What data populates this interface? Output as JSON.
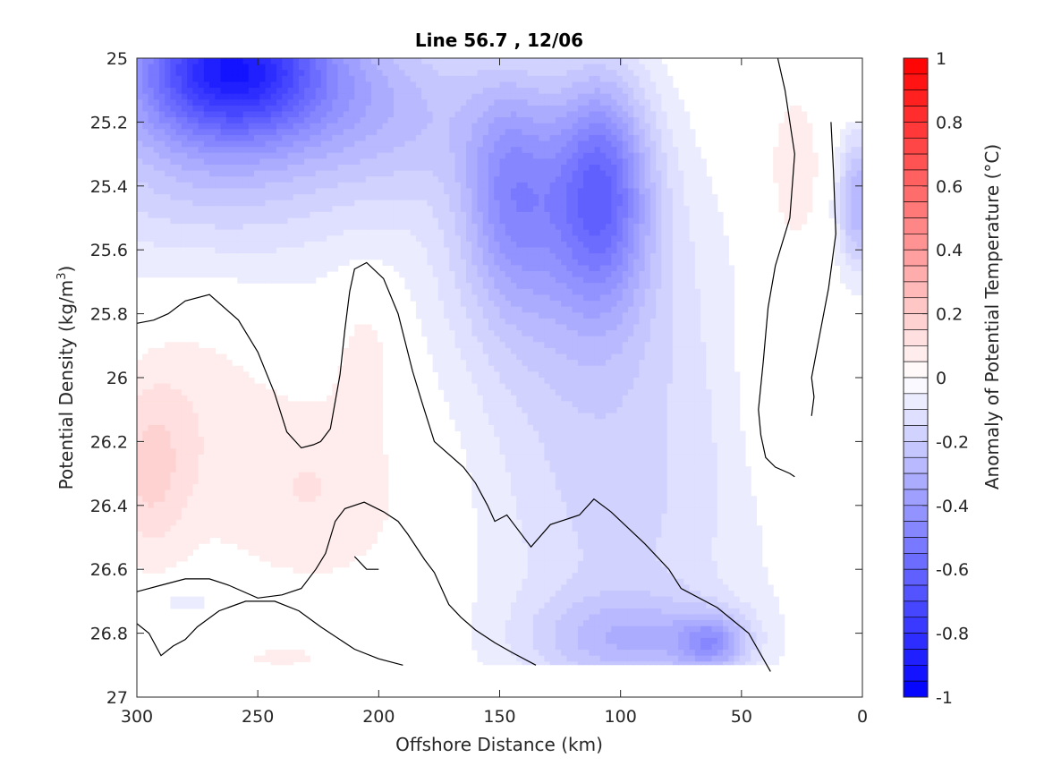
{
  "chart_data": {
    "type": "contour",
    "title": "Line 56.7 , 12/06",
    "xlabel": "Offshore Distance (km)",
    "ylabel_main": "Potential Density (kg/m",
    "ylabel_sup": "3",
    "ylabel_close": ")",
    "x_range": [
      300,
      0
    ],
    "x_reversed": true,
    "y_range": [
      25,
      27
    ],
    "y_reversed": true,
    "x_ticks": [
      300,
      250,
      200,
      150,
      100,
      50,
      0
    ],
    "x_tick_labels": [
      "300",
      "250",
      "200",
      "150",
      "100",
      "50",
      "0"
    ],
    "y_ticks": [
      25,
      25.2,
      25.4,
      25.6,
      25.8,
      26,
      26.2,
      26.4,
      26.6,
      26.8,
      27
    ],
    "y_tick_labels": [
      "25",
      "25.2",
      "25.4",
      "25.6",
      "25.8",
      "26",
      "26.2",
      "26.4",
      "26.6",
      "26.8",
      "27"
    ],
    "colorbar": {
      "label": "Anomaly of Potential Temperature (°C)",
      "range": [
        -1,
        1
      ],
      "ticks": [
        1,
        0.8,
        0.6,
        0.4,
        0.2,
        0,
        -0.2,
        -0.4,
        -0.6,
        -0.8,
        -1
      ],
      "tick_labels": [
        "1",
        "0.8",
        "0.6",
        "0.4",
        "0.2",
        "0",
        "-0.2",
        "-0.4",
        "-0.6",
        "-0.8",
        "-1"
      ],
      "n_levels": 40,
      "color_neg": "#0000ff",
      "color_zero": "#ffffff",
      "color_pos": "#ff0000"
    },
    "data_extent": {
      "x_max": 300,
      "x_min": 35,
      "y_max": 26.9
    },
    "blank_corner": {
      "x_max": 14,
      "y_max": 25.2
    },
    "field_features": [
      {
        "x": 260,
        "y": 25.02,
        "value": -0.72,
        "sx": 28,
        "sy": 0.16
      },
      {
        "x": 270,
        "y": 25.25,
        "value": -0.25,
        "sx": 45,
        "sy": 0.3
      },
      {
        "x": 195,
        "y": 25.15,
        "value": -0.2,
        "sx": 30,
        "sy": 0.2
      },
      {
        "x": 145,
        "y": 25.4,
        "value": -0.3,
        "sx": 14,
        "sy": 0.25
      },
      {
        "x": 108,
        "y": 25.4,
        "value": -0.45,
        "sx": 14,
        "sy": 0.25
      },
      {
        "x": 125,
        "y": 25.6,
        "value": -0.2,
        "sx": 35,
        "sy": 0.35
      },
      {
        "x": 100,
        "y": 26.4,
        "value": -0.16,
        "sx": 40,
        "sy": 0.5
      },
      {
        "x": 95,
        "y": 26.82,
        "value": -0.2,
        "sx": 30,
        "sy": 0.1
      },
      {
        "x": 62,
        "y": 26.83,
        "value": -0.28,
        "sx": 10,
        "sy": 0.06
      },
      {
        "x": 2,
        "y": 25.45,
        "value": -0.3,
        "sx": 6,
        "sy": 0.15
      },
      {
        "x": 28,
        "y": 25.35,
        "value": 0.1,
        "sx": 8,
        "sy": 0.18
      },
      {
        "x": 38,
        "y": 26.0,
        "value": 0.08,
        "sx": 8,
        "sy": 0.22
      },
      {
        "x": 205,
        "y": 25.9,
        "value": 0.08,
        "sx": 10,
        "sy": 0.15
      },
      {
        "x": 295,
        "y": 26.3,
        "value": 0.14,
        "sx": 12,
        "sy": 0.2
      },
      {
        "x": 275,
        "y": 26.0,
        "value": 0.07,
        "sx": 22,
        "sy": 0.3
      },
      {
        "x": 240,
        "y": 26.88,
        "value": 0.05,
        "sx": 25,
        "sy": 0.05
      },
      {
        "x": 225,
        "y": 26.35,
        "value": 0.1,
        "sx": 30,
        "sy": 0.22
      },
      {
        "x": 280,
        "y": 26.7,
        "value": -0.08,
        "sx": 12,
        "sy": 0.04
      }
    ],
    "zero_contours": [
      [
        [
          300,
          25.83
        ],
        [
          293,
          25.82
        ],
        [
          287,
          25.8
        ],
        [
          280,
          25.76
        ],
        [
          270,
          25.74
        ],
        [
          258,
          25.82
        ],
        [
          250,
          25.92
        ],
        [
          243,
          26.05
        ],
        [
          238,
          26.17
        ],
        [
          232,
          26.22
        ],
        [
          227,
          26.21
        ],
        [
          224,
          26.2
        ],
        [
          220,
          26.16
        ],
        [
          216,
          25.99
        ],
        [
          214,
          25.85
        ],
        [
          212,
          25.73
        ],
        [
          210,
          25.66
        ],
        [
          205,
          25.64
        ],
        [
          198,
          25.69
        ],
        [
          192,
          25.8
        ],
        [
          186,
          25.98
        ],
        [
          182,
          26.08
        ],
        [
          177,
          26.2
        ],
        [
          165,
          26.28
        ],
        [
          160,
          26.33
        ],
        [
          155,
          26.4
        ],
        [
          152,
          26.45
        ],
        [
          147,
          26.43
        ],
        [
          143,
          26.47
        ],
        [
          137,
          26.53
        ],
        [
          129,
          26.46
        ],
        [
          117,
          26.43
        ],
        [
          111,
          26.38
        ],
        [
          104,
          26.42
        ],
        [
          90,
          26.52
        ],
        [
          80,
          26.6
        ],
        [
          75,
          26.66
        ],
        [
          60,
          26.72
        ],
        [
          47,
          26.8
        ],
        [
          38,
          26.92
        ]
      ],
      [
        [
          210,
          26.56
        ],
        [
          205,
          26.6
        ],
        [
          200,
          26.6
        ]
      ],
      [
        [
          300,
          26.67
        ],
        [
          290,
          26.65
        ],
        [
          280,
          26.63
        ],
        [
          270,
          26.63
        ],
        [
          262,
          26.65
        ],
        [
          250,
          26.69
        ],
        [
          240,
          26.68
        ],
        [
          232,
          26.66
        ],
        [
          226,
          26.6
        ],
        [
          222,
          26.55
        ],
        [
          218,
          26.45
        ],
        [
          214,
          26.41
        ],
        [
          206,
          26.39
        ],
        [
          198,
          26.42
        ],
        [
          192,
          26.45
        ],
        [
          188,
          26.49
        ],
        [
          181,
          26.57
        ],
        [
          177,
          26.61
        ],
        [
          171,
          26.71
        ],
        [
          166,
          26.75
        ],
        [
          160,
          26.79
        ],
        [
          152,
          26.83
        ],
        [
          145,
          26.86
        ],
        [
          135,
          26.9
        ]
      ],
      [
        [
          300,
          26.77
        ],
        [
          295,
          26.8
        ],
        [
          290,
          26.87
        ],
        [
          285,
          26.84
        ],
        [
          280,
          26.82
        ],
        [
          275,
          26.78
        ],
        [
          266,
          26.73
        ],
        [
          255,
          26.7
        ],
        [
          243,
          26.7
        ],
        [
          233,
          26.73
        ],
        [
          224,
          26.78
        ],
        [
          210,
          26.85
        ],
        [
          200,
          26.88
        ],
        [
          190,
          26.9
        ]
      ],
      [
        [
          35,
          25.0
        ],
        [
          32,
          25.1
        ],
        [
          28,
          25.3
        ],
        [
          30,
          25.5
        ],
        [
          36,
          25.65
        ],
        [
          39,
          25.78
        ],
        [
          41,
          25.95
        ],
        [
          43,
          26.1
        ],
        [
          42,
          26.18
        ],
        [
          40,
          26.25
        ],
        [
          36,
          26.28
        ],
        [
          30,
          26.3
        ],
        [
          28,
          26.31
        ]
      ],
      [
        [
          13,
          25.2
        ],
        [
          12,
          25.35
        ],
        [
          11,
          25.55
        ],
        [
          14,
          25.72
        ],
        [
          18,
          25.88
        ],
        [
          21,
          26.0
        ],
        [
          20,
          26.06
        ],
        [
          21,
          26.12
        ]
      ]
    ]
  }
}
